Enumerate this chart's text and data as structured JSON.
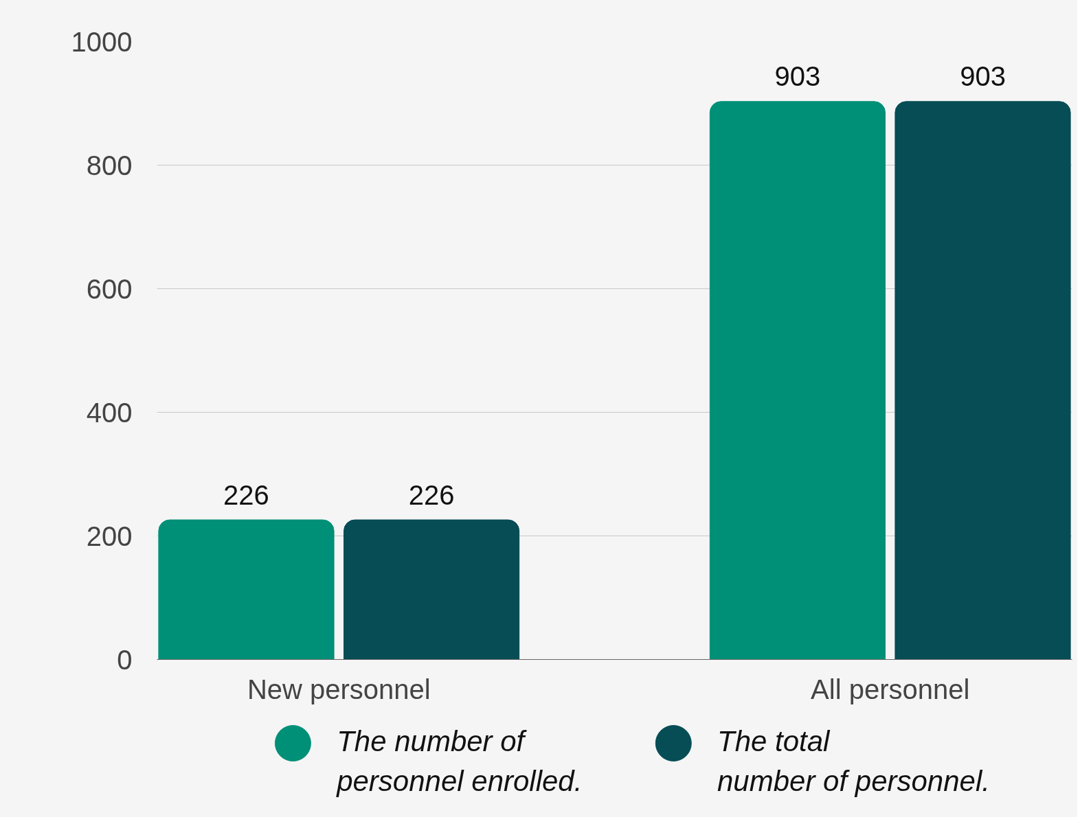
{
  "chart_data": {
    "type": "bar",
    "categories": [
      "New personnel",
      "All personnel"
    ],
    "series": [
      {
        "name": "The number of personnel enrolled.",
        "color": "#009077",
        "values": [
          226,
          903
        ]
      },
      {
        "name": "The total number of personnel.",
        "color": "#064d55",
        "values": [
          226,
          903
        ]
      }
    ],
    "ylim": [
      0,
      1000
    ],
    "yticks": [
      0,
      200,
      400,
      600,
      800,
      1000
    ],
    "grid": "y",
    "legend": "bottom",
    "data_labels": true
  }
}
